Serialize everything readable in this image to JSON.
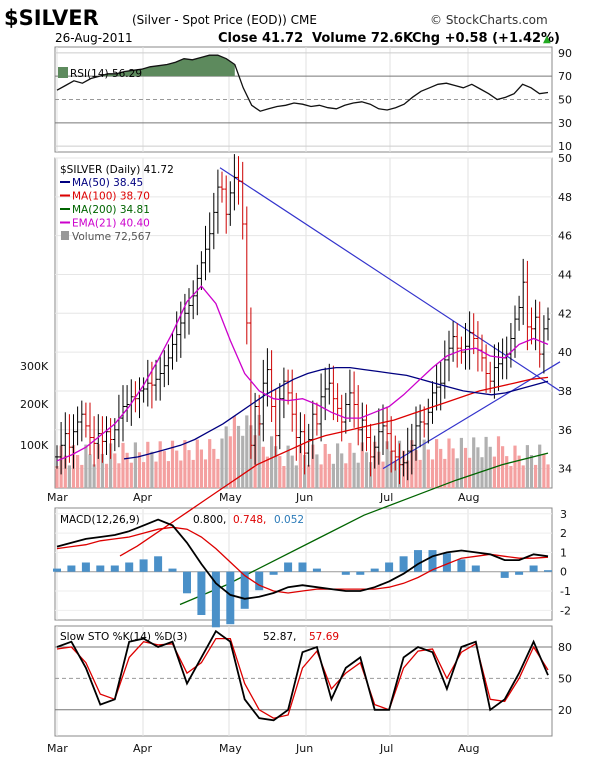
{
  "header": {
    "symbol": "$SILVER",
    "description": "(Silver - Spot Price (EOD)) CME",
    "copyright": "© StockCharts.com",
    "date": "26-Aug-2011",
    "close": "Close 41.72",
    "volume": "Volume 72.6K",
    "chg": "Chg +0.58 (+1.42%)",
    "up_arrow": "▲"
  },
  "months": [
    "Mar",
    "Apr",
    "May",
    "Jun",
    "Jul",
    "Aug"
  ],
  "rsi_panel": {
    "legend": "RSI(14) 56.29",
    "ticks": [
      "90",
      "70",
      "50",
      "30",
      "10"
    ]
  },
  "price_panel": {
    "legend_main": "$SILVER (Daily) 41.72",
    "legend_items": [
      {
        "text": "MA(50) 38.45",
        "color": "#000080"
      },
      {
        "text": "MA(100) 38.70",
        "color": "#dd0000"
      },
      {
        "text": "MA(200) 34.81",
        "color": "#006400"
      },
      {
        "text": "EMA(21) 40.40",
        "color": "#cc00cc"
      },
      {
        "text": "Volume 72,567",
        "color": "#555555"
      }
    ],
    "price_ticks": [
      "50",
      "48",
      "46",
      "44",
      "42",
      "40",
      "38",
      "36",
      "34"
    ],
    "volume_ticks": [
      "300K",
      "200K",
      "100K"
    ]
  },
  "macd_panel": {
    "legend_name": "MACD(12,26,9)",
    "legend_v1": "0.800,",
    "legend_v2": "0.748,",
    "legend_v3": "0.052",
    "ticks": [
      "3",
      "2",
      "1",
      "0",
      "-1",
      "-2"
    ]
  },
  "sto_panel": {
    "legend_name": "Slow STO %K(14) %D(3)",
    "legend_v1": "52.87,",
    "legend_v2": "57.69",
    "ticks": [
      "80",
      "50",
      "20"
    ]
  },
  "colors": {
    "candle": "#000000",
    "volume_up": "#f4a0a0",
    "volume_down": "#b0b0b0",
    "ma50": "#000080",
    "ma100": "#dd0000",
    "ma200": "#006400",
    "ema21": "#cc00cc",
    "rsi_fill": "#5d8a5d",
    "macd_hist": "#4a90c8",
    "trend": "#3333cc"
  },
  "chart_data": {
    "type": "line",
    "title": "$SILVER (Daily)",
    "months": [
      "Mar",
      "Apr",
      "May",
      "Jun",
      "Jul",
      "Aug"
    ],
    "price_range": [
      33,
      50
    ],
    "close": [
      34.6,
      35.2,
      35.8,
      35.1,
      35.9,
      36.4,
      36.8,
      36.2,
      35.6,
      35.3,
      35.8,
      35.4,
      35.9,
      35.5,
      36.0,
      36.6,
      37.2,
      37.3,
      37.7,
      37.6,
      38.0,
      38.1,
      38.4,
      38.3,
      38.6,
      38.9,
      39.3,
      39.7,
      40.4,
      40.9,
      41.5,
      42.0,
      42.4,
      42.9,
      43.8,
      44.6,
      45.3,
      46.1,
      47.2,
      48.5,
      48.4,
      47.1,
      48.2,
      49.0,
      48.8,
      46.6,
      41.5,
      35.2,
      37.2,
      36.3,
      38.4,
      39.1,
      37.2,
      35.7,
      37.6,
      38.5,
      37.9,
      36.8,
      35.6,
      35.9,
      34.8,
      35.5,
      36.8,
      36.3,
      37.7,
      38.1,
      38.4,
      37.6,
      37.1,
      36.4,
      37.3,
      37.9,
      37.3,
      36.0,
      36.5,
      35.6,
      34.6,
      35.1,
      35.9,
      36.2,
      35.8,
      34.9,
      34.6,
      34.2,
      34.3,
      34.9,
      35.2,
      36.2,
      36.4,
      36.3,
      36.9,
      37.9,
      38.2,
      38.4,
      39.6,
      40.2,
      40.8,
      40.2,
      40.0,
      40.3,
      41.0,
      40.7,
      40.1,
      39.7,
      38.9,
      38.5,
      39.2,
      39.4,
      39.7,
      39.9,
      40.7,
      41.7,
      42.3,
      43.6,
      41.3,
      41.2,
      41.8,
      39.9,
      41.2,
      41.7
    ],
    "ma50": [
      34.5,
      34.6,
      34.8,
      35.0,
      35.2,
      35.5,
      35.9,
      36.3,
      36.8,
      37.3,
      37.8,
      38.2,
      38.6,
      38.9,
      39.1,
      39.2,
      39.2,
      39.1,
      39.0,
      38.9,
      38.8,
      38.6,
      38.4,
      38.2,
      38.0,
      37.9,
      37.8,
      37.9,
      38.1,
      38.3,
      38.5
    ],
    "ma100": [
      29.5,
      30.0,
      30.6,
      31.2,
      31.8,
      32.4,
      33.0,
      33.6,
      34.2,
      34.6,
      35.0,
      35.4,
      35.7,
      35.9,
      36.1,
      36.3,
      36.5,
      36.8,
      37.1,
      37.4,
      37.7,
      38.0,
      38.2,
      38.4,
      38.6,
      38.7
    ],
    "ma200": [
      27.0,
      28.0,
      29.2,
      30.4,
      31.6,
      32.5,
      33.4,
      34.2,
      34.8
    ],
    "ema21": [
      34.4,
      34.7,
      35.1,
      35.7,
      36.3,
      37.2,
      38.3,
      39.6,
      41.0,
      42.6,
      43.4,
      42.5,
      40.6,
      38.9,
      38.0,
      37.6,
      37.5,
      37.6,
      37.3,
      36.9,
      36.6,
      36.6,
      36.9,
      37.2,
      37.8,
      38.5,
      39.2,
      39.8,
      40.1,
      40.2,
      39.8,
      39.7,
      40.4,
      40.7,
      40.4
    ],
    "rsi": [
      58,
      62,
      66,
      64,
      68,
      70,
      72,
      72,
      74,
      75,
      76,
      78,
      79,
      80,
      82,
      85,
      84,
      86,
      88,
      88,
      85,
      80,
      60,
      45,
      40,
      42,
      44,
      45,
      47,
      46,
      44,
      45,
      43,
      42,
      45,
      47,
      48,
      46,
      42,
      41,
      43,
      46,
      52,
      57,
      60,
      63,
      64,
      62,
      60,
      63,
      59,
      55,
      50,
      52,
      55,
      63,
      60,
      55,
      56
    ],
    "macd": [
      1.3,
      1.5,
      1.7,
      1.8,
      1.9,
      2.1,
      2.4,
      2.7,
      2.4,
      1.5,
      0.4,
      -0.6,
      -1.2,
      -1.4,
      -1.3,
      -1.1,
      -0.8,
      -0.7,
      -0.8,
      -0.9,
      -1.0,
      -1.0,
      -0.8,
      -0.5,
      -0.1,
      0.4,
      0.8,
      1.0,
      1.1,
      1.0,
      0.9,
      0.6,
      0.6,
      0.9,
      0.8
    ],
    "macd_signal": [
      1.2,
      1.3,
      1.4,
      1.6,
      1.7,
      1.8,
      2.0,
      2.2,
      2.3,
      2.2,
      1.8,
      1.2,
      0.5,
      -0.2,
      -0.7,
      -1.0,
      -1.1,
      -1.0,
      -0.9,
      -0.9,
      -0.9,
      -0.9,
      -0.9,
      -0.8,
      -0.6,
      -0.3,
      0.1,
      0.4,
      0.7,
      0.8,
      0.9,
      0.8,
      0.7,
      0.7,
      0.75
    ],
    "sto_k": [
      80,
      85,
      60,
      25,
      30,
      85,
      88,
      80,
      85,
      45,
      70,
      95,
      85,
      30,
      12,
      10,
      20,
      75,
      80,
      30,
      60,
      70,
      20,
      20,
      70,
      80,
      75,
      40,
      80,
      85,
      20,
      30,
      55,
      85,
      53
    ],
    "sto_d": [
      78,
      80,
      65,
      35,
      30,
      70,
      85,
      82,
      83,
      55,
      65,
      88,
      88,
      45,
      20,
      12,
      15,
      60,
      76,
      40,
      55,
      65,
      25,
      20,
      60,
      76,
      78,
      50,
      75,
      83,
      30,
      28,
      50,
      80,
      58
    ]
  }
}
